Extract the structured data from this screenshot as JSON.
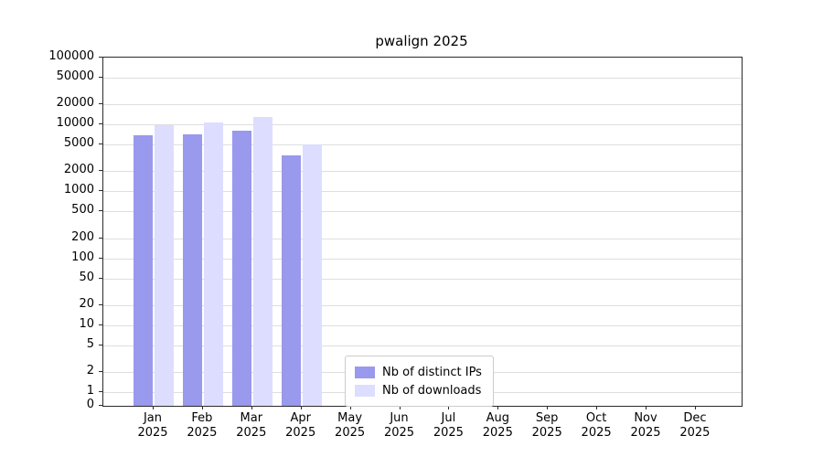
{
  "chart_data": {
    "type": "bar",
    "title": "pwalign 2025",
    "categories": [
      "Jan",
      "Feb",
      "Mar",
      "Apr",
      "May",
      "Jun",
      "Jul",
      "Aug",
      "Sep",
      "Oct",
      "Nov",
      "Dec"
    ],
    "year_label": "2025",
    "series": [
      {
        "name": "Nb of distinct IPs",
        "color": "#9999ee",
        "values": [
          7000,
          7200,
          8000,
          3400,
          null,
          null,
          null,
          null,
          null,
          null,
          null,
          null
        ]
      },
      {
        "name": "Nb of downloads",
        "color": "#ddddff",
        "values": [
          9800,
          10800,
          12800,
          5100,
          null,
          null,
          null,
          null,
          null,
          null,
          null,
          null
        ]
      }
    ],
    "yscale": "log",
    "ylim": [
      0,
      100000
    ],
    "yticks": [
      0,
      1,
      2,
      5,
      10,
      20,
      50,
      100,
      200,
      500,
      1000,
      2000,
      5000,
      10000,
      20000,
      50000,
      100000
    ],
    "grid": true,
    "legend_position": "lower-center-inside"
  }
}
